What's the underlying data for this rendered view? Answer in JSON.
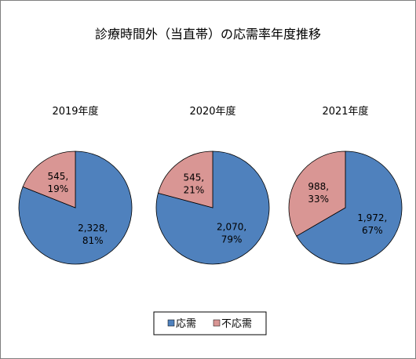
{
  "chart_data": {
    "type": "pie",
    "title": "診療時間外（当直帯）の応需率年度推移",
    "legend": {
      "placement": "bottom",
      "entries": [
        "応需",
        "不応需"
      ]
    },
    "colors": {
      "応需": "#4f81bd",
      "不応需": "#d99694"
    },
    "pies": [
      {
        "subtitle": "2019年度",
        "slices": [
          {
            "category": "応需",
            "value": 2328,
            "percent": 81,
            "label_line1": "2,328,",
            "label_line2": "81%"
          },
          {
            "category": "不応需",
            "value": 545,
            "percent": 19,
            "label_line1": "545,",
            "label_line2": "19%"
          }
        ]
      },
      {
        "subtitle": "2020年度",
        "slices": [
          {
            "category": "応需",
            "value": 2070,
            "percent": 79,
            "label_line1": "2,070,",
            "label_line2": "79%"
          },
          {
            "category": "不応需",
            "value": 545,
            "percent": 21,
            "label_line1": "545,",
            "label_line2": "21%"
          }
        ]
      },
      {
        "subtitle": "2021年度",
        "slices": [
          {
            "category": "応需",
            "value": 1972,
            "percent": 67,
            "label_line1": "1,972,",
            "label_line2": "67%"
          },
          {
            "category": "不応需",
            "value": 988,
            "percent": 33,
            "label_line1": "988,",
            "label_line2": "33%"
          }
        ]
      }
    ]
  }
}
